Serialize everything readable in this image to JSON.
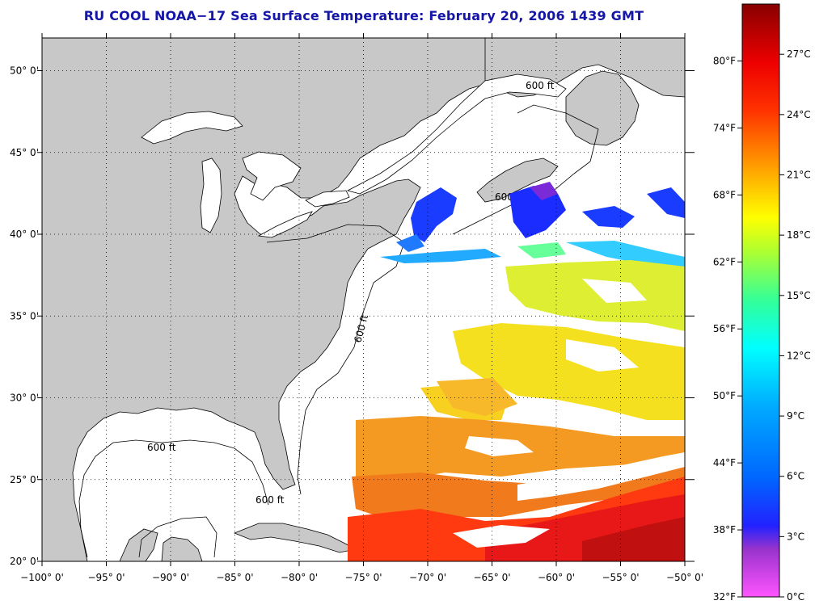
{
  "title": "RU COOL  NOAA−17  Sea Surface Temperature:  February 20, 2006 1439 GMT",
  "map": {
    "lon_range": [
      -100,
      -50
    ],
    "lat_range": [
      20,
      52
    ],
    "lon_ticks": [
      {
        "value": -100,
        "label": "−100° 0'"
      },
      {
        "value": -95,
        "label": "−95° 0'"
      },
      {
        "value": -90,
        "label": "−90° 0'"
      },
      {
        "value": -85,
        "label": "−85° 0'"
      },
      {
        "value": -80,
        "label": "−80° 0'"
      },
      {
        "value": -75,
        "label": "−75° 0'"
      },
      {
        "value": -70,
        "label": "−70° 0'"
      },
      {
        "value": -65,
        "label": "−65° 0'"
      },
      {
        "value": -60,
        "label": "−60° 0'"
      },
      {
        "value": -55,
        "label": "−55° 0'"
      },
      {
        "value": -50,
        "label": "−50° 0'"
      }
    ],
    "lat_ticks": [
      {
        "value": 50,
        "label": "50° 0'"
      },
      {
        "value": 45,
        "label": "45° 0'"
      },
      {
        "value": 40,
        "label": "40° 0'"
      },
      {
        "value": 35,
        "label": "35° 0'"
      },
      {
        "value": 30,
        "label": "30° 0'"
      },
      {
        "value": 25,
        "label": "25° 0'"
      },
      {
        "value": 20,
        "label": "20° 0'"
      }
    ],
    "isobath_label": "600 ft",
    "land_color": "#c8c8c8",
    "ocean_color": "#ffffff"
  },
  "colorbar": {
    "range_c": [
      0,
      29.5
    ],
    "fahrenheit_labels": [
      "80°F",
      "74°F",
      "68°F",
      "62°F",
      "56°F",
      "50°F",
      "44°F",
      "38°F",
      "32°F"
    ],
    "celsius_labels": [
      "27°C",
      "24°C",
      "21°C",
      "18°C",
      "15°C",
      "12°C",
      "9°C",
      "6°C",
      "3°C",
      "0°C"
    ],
    "fahrenheit_values": [
      80,
      74,
      68,
      62,
      56,
      50,
      44,
      38,
      32
    ],
    "celsius_values": [
      27,
      24,
      21,
      18,
      15,
      12,
      9,
      6,
      3,
      0
    ],
    "colors": [
      "#ff44ff",
      "#8822cc",
      "#1111ff",
      "#0099ff",
      "#00ffff",
      "#00ff99",
      "#ccff00",
      "#ffff00",
      "#ff9900",
      "#ff2200",
      "#8b0000"
    ]
  }
}
